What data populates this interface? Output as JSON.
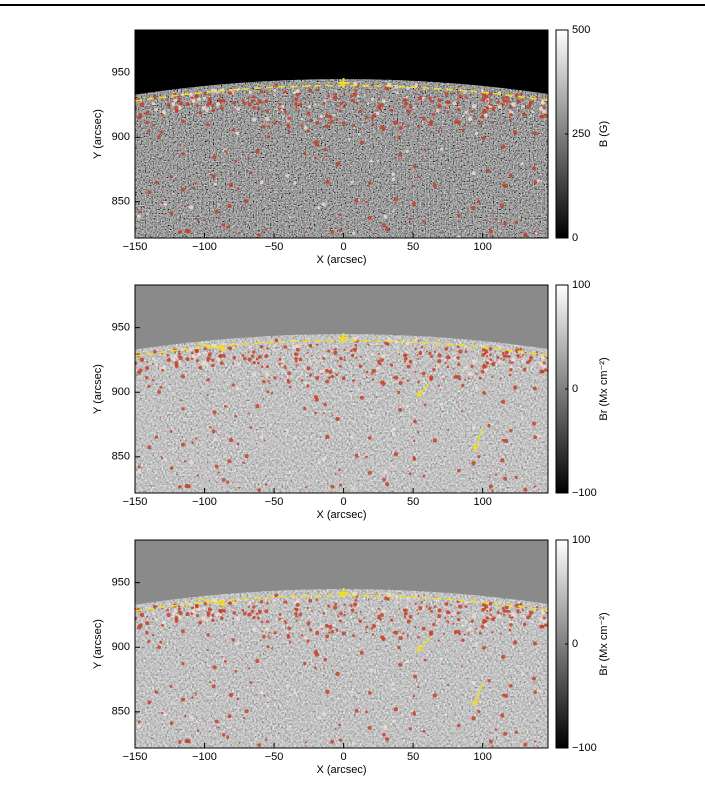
{
  "panels": [
    {
      "xlabel": "X (arcsec)",
      "ylabel": "Y (arcsec)",
      "xlim": [
        -150,
        147
      ],
      "ylim": [
        822,
        983
      ],
      "xticks": [
        {
          "value": -150,
          "label": "−150"
        },
        {
          "value": -100,
          "label": "−100"
        },
        {
          "value": -50,
          "label": "−50"
        },
        0,
        50,
        100
      ],
      "yticks": [
        850,
        900,
        950
      ],
      "colorbar": {
        "label": "B (G)",
        "lim": [
          0,
          500
        ],
        "ticks": [
          0,
          250,
          500
        ]
      }
    },
    {
      "xlabel": "X (arcsec)",
      "ylabel": "Y (arcsec)",
      "xlim": [
        -150,
        147
      ],
      "ylim": [
        822,
        983
      ],
      "xticks": [
        {
          "value": -150,
          "label": "−150"
        },
        {
          "value": -100,
          "label": "−100"
        },
        {
          "value": -50,
          "label": "−50"
        },
        0,
        50,
        100
      ],
      "yticks": [
        850,
        900,
        950
      ],
      "colorbar": {
        "label": "Br (Mx cm⁻²)",
        "lim": [
          -100,
          100
        ],
        "ticks": [
          {
            "value": -100,
            "label": "−100"
          },
          0,
          100
        ]
      }
    },
    {
      "xlabel": "X (arcsec)",
      "ylabel": "Y (arcsec)",
      "xlim": [
        -150,
        147
      ],
      "ylim": [
        822,
        983
      ],
      "xticks": [
        {
          "value": -150,
          "label": "−150"
        },
        {
          "value": -100,
          "label": "−100"
        },
        {
          "value": -50,
          "label": "−50"
        },
        0,
        50,
        100
      ],
      "yticks": [
        850,
        900,
        950
      ],
      "colorbar": {
        "label": "Br (Mx cm⁻²)",
        "lim": [
          -100,
          100
        ],
        "ticks": [
          {
            "value": -100,
            "label": "−100"
          },
          0,
          100
        ]
      }
    }
  ]
}
